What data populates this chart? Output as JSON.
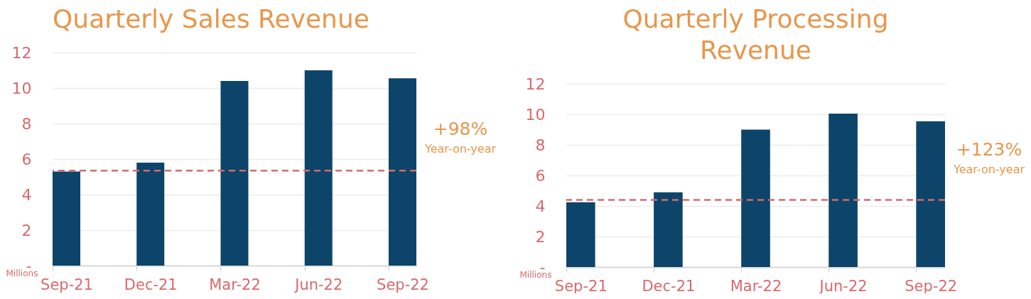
{
  "chart_data": [
    {
      "type": "bar",
      "title": "Quarterly Sales Revenue",
      "ylabel": "Millions",
      "categories": [
        "Sep-21",
        "Dec-21",
        "Mar-22",
        "Jun-22",
        "Sep-22"
      ],
      "values": [
        5.3,
        5.8,
        10.4,
        11,
        10.55
      ],
      "color": "#0c4569",
      "ylim": [
        0,
        12
      ],
      "yticks": [
        {
          "value": 0,
          "label": "-"
        },
        2,
        4,
        6,
        8,
        10,
        12
      ],
      "grid": "y",
      "ref_lines": [
        {
          "axis": "y",
          "value": 5.35,
          "color": "#d9696b",
          "line_style": "dashed"
        }
      ],
      "annotations": [
        "+98%",
        "Year-on-year"
      ]
    },
    {
      "type": "bar",
      "title": "Quarterly Processing Revenue",
      "ylabel": "Millions",
      "categories": [
        "Sep-21",
        "Dec-21",
        "Mar-22",
        "Jun-22",
        "Sep-22"
      ],
      "values": [
        4.25,
        4.9,
        9,
        10.05,
        9.55
      ],
      "color": "#0c4569",
      "ylim": [
        0,
        12
      ],
      "yticks": [
        {
          "value": 0,
          "label": "-"
        },
        2,
        4,
        6,
        8,
        10,
        12
      ],
      "grid": "y",
      "ref_lines": [
        {
          "axis": "y",
          "value": 4.4,
          "color": "#d9696b",
          "line_style": "dashed"
        }
      ],
      "annotations": [
        "+123%",
        "Year-on-year"
      ]
    }
  ]
}
